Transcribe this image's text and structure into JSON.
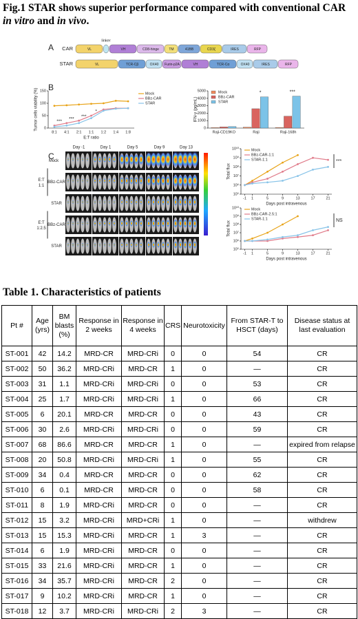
{
  "figure": {
    "title": [
      "Fig.1 STAR shows superior performance compared with conventional CAR ",
      "in vitro",
      " and ",
      "in vivo",
      "."
    ],
    "panel_a": {
      "label": "A",
      "linker": "linker",
      "rows": [
        {
          "name": "CAR",
          "segments": [
            "VL",
            "VH",
            "CD8-hinge",
            "TM",
            "41BB",
            "CD3ζ",
            "IRES",
            "RFP"
          ]
        },
        {
          "name": "STAR",
          "segments": [
            "VL",
            "TCR-Cβ",
            "OX40",
            "Furin-p2A",
            "VH",
            "TCR-Cα",
            "OX40",
            "IRES",
            "RFP"
          ]
        }
      ]
    },
    "panel_b": {
      "label": "B"
    },
    "panel_c": {
      "label": "C",
      "days": [
        "Day -1",
        "Day 1",
        "Day 5",
        "Day 9",
        "Day 13"
      ],
      "rows": [
        "Mock",
        "BBz-CAR",
        "STAR",
        "BBz-CAR",
        "STAR"
      ],
      "groups": [
        [
          "E:T",
          "1:1"
        ],
        [
          "E:T",
          "1:2.5"
        ]
      ]
    }
  },
  "chart_data": [
    {
      "type": "line",
      "y_label": "Tumor cells viability (%)",
      "x_label": "E:T ratio",
      "categories": [
        "8:1",
        "4:1",
        "2:1",
        "1:1",
        "1:2",
        "1:4",
        "1:8"
      ],
      "ylim": [
        0,
        150
      ],
      "yticks": [
        0,
        50,
        100,
        150
      ],
      "legend": "right",
      "series": [
        {
          "name": "Mock",
          "color": "#e8a317",
          "values": [
            90,
            92,
            95,
            98,
            100,
            110,
            108
          ]
        },
        {
          "name": "BBz-CAR",
          "color": "#e07b8a",
          "values": [
            10,
            20,
            30,
            50,
            75,
            80,
            80
          ]
        },
        {
          "name": "STAR",
          "color": "#87c3e8",
          "values": [
            5,
            10,
            20,
            40,
            70,
            78,
            80
          ]
        }
      ],
      "annotations": [
        "***",
        "***",
        "***",
        "*"
      ]
    },
    {
      "type": "bar",
      "y_label": "IFN-γ (pg/mL)",
      "categories": [
        "Raji-CD19KO",
        "Raji",
        "Raji-168h"
      ],
      "ylim": [
        0,
        5000
      ],
      "yticks": [
        0,
        1000,
        2000,
        3000,
        4000,
        5000
      ],
      "legend": "upper left",
      "series": [
        {
          "name": "Mock",
          "color": "#f08a5d",
          "values": [
            60,
            120,
            80
          ]
        },
        {
          "name": "BBz-CAR",
          "color": "#d9645f",
          "values": [
            150,
            2600,
            1600
          ]
        },
        {
          "name": "STAR",
          "color": "#7cc3e8",
          "values": [
            200,
            4200,
            4300
          ]
        }
      ],
      "annotations": [
        "*",
        "***"
      ]
    },
    {
      "type": "line",
      "y_label": "Total flux",
      "x_label": "Days post intravenous",
      "log_y": true,
      "x": [
        -1,
        1,
        5,
        9,
        13,
        17,
        21
      ],
      "xlim": [
        -2,
        22
      ],
      "xticks": [
        -1,
        1,
        5,
        9,
        13,
        17,
        21
      ],
      "ylim": [
        100000,
        10000000000
      ],
      "yticks": [
        {
          "value": 100000,
          "label": "10⁵"
        },
        {
          "value": 1000000,
          "label": "10⁶"
        },
        {
          "value": 10000000,
          "label": "10⁷"
        },
        {
          "value": 100000000,
          "label": "10⁸"
        },
        {
          "value": 1000000000,
          "label": "10⁹"
        },
        {
          "value": 10000000000,
          "label": "10¹⁰"
        }
      ],
      "legend": "upper left",
      "series": [
        {
          "name": "Mock",
          "color": "#e8a317",
          "values": [
            1000000,
            3000000,
            30000000,
            300000000,
            2000000000,
            null,
            null
          ]
        },
        {
          "name": "BBz-CAR-1:1",
          "color": "#e07b8a",
          "values": [
            1000000,
            2000000,
            5000000,
            30000000,
            200000000,
            1000000000,
            600000000
          ]
        },
        {
          "name": "STAR-1:1",
          "color": "#87c3e8",
          "values": [
            1000000,
            1500000,
            2000000,
            3000000,
            10000000,
            50000000,
            100000000
          ]
        }
      ],
      "annotations": [
        "***"
      ]
    },
    {
      "type": "line",
      "y_label": "Total flux",
      "x_label": "Days post intravenous",
      "log_y": true,
      "x": [
        -1,
        1,
        5,
        9,
        13,
        17,
        21
      ],
      "xlim": [
        -2,
        22
      ],
      "xticks": [
        -1,
        1,
        5,
        9,
        13,
        17,
        21
      ],
      "ylim": [
        100000,
        10000000000
      ],
      "yticks": [
        {
          "value": 100000,
          "label": "10⁵"
        },
        {
          "value": 1000000,
          "label": "10⁶"
        },
        {
          "value": 10000000,
          "label": "10⁷"
        },
        {
          "value": 100000000,
          "label": "10⁸"
        },
        {
          "value": 1000000000,
          "label": "10⁹"
        },
        {
          "value": 10000000000,
          "label": "10¹⁰"
        }
      ],
      "legend": "upper left",
      "series": [
        {
          "name": "Mock",
          "color": "#e8a317",
          "values": [
            1000000,
            2000000,
            10000000,
            100000000,
            1000000000,
            null,
            null
          ]
        },
        {
          "name": "BBz-CAR-2.5:1",
          "color": "#e07b8a",
          "values": [
            1000000,
            1000000,
            1000000,
            2000000,
            3000000,
            5000000,
            20000000
          ]
        },
        {
          "name": "STAR-1:1",
          "color": "#87c3e8",
          "values": [
            1000000,
            1000000,
            1500000,
            3000000,
            5000000,
            20000000,
            50000000
          ]
        }
      ],
      "annotations": [
        "NS"
      ]
    }
  ],
  "table": {
    "title": "Table 1. Characteristics of patients",
    "headers": [
      "Pt #",
      "Age (yrs)",
      "BM blasts (%)",
      "Response in 2 weeks",
      "Response in 4 weeks",
      "CRS",
      "Neurotoxicity",
      "From STAR-T to HSCT (days)",
      "Disease status at last evaluation"
    ],
    "rows": [
      [
        "ST-001",
        "42",
        "14.2",
        "MRD-CR",
        "MRD-CRi",
        "0",
        "0",
        "54",
        "CR"
      ],
      [
        "ST-002",
        "50",
        "36.2",
        "MRD-CRi",
        "MRD-CR",
        "1",
        "0",
        "—",
        "CR"
      ],
      [
        "ST-003",
        "31",
        "1.1",
        "MRD-CRi",
        "MRD-CRi",
        "0",
        "0",
        "53",
        "CR"
      ],
      [
        "ST-004",
        "25",
        "1.7",
        "MRD-CRi",
        "MRD-CRi",
        "1",
        "0",
        "66",
        "CR"
      ],
      [
        "ST-005",
        "6",
        "20.1",
        "MRD-CR",
        "MRD-CR",
        "0",
        "0",
        "43",
        "CR"
      ],
      [
        "ST-006",
        "30",
        "2.6",
        "MRD-CRi",
        "MRD-CRi",
        "0",
        "0",
        "59",
        "CR"
      ],
      [
        "ST-007",
        "68",
        "86.6",
        "MRD-CR",
        "MRD-CR",
        "1",
        "0",
        "—",
        "expired from relapse"
      ],
      [
        "ST-008",
        "20",
        "50.8",
        "MRD-CRi",
        "MRD-CRi",
        "1",
        "0",
        "55",
        "CR"
      ],
      [
        "ST-009",
        "34",
        "0.4",
        "MRD-CR",
        "MRD-CR",
        "0",
        "0",
        "62",
        "CR"
      ],
      [
        "ST-010",
        "6",
        "0.1",
        "MRD-CR",
        "MRD-CR",
        "0",
        "0",
        "58",
        "CR"
      ],
      [
        "ST-011",
        "8",
        "1.9",
        "MRD-CRi",
        "MRD-CR",
        "0",
        "0",
        "—",
        "CR"
      ],
      [
        "ST-012",
        "15",
        "3.2",
        "MRD-CRi",
        "MRD+CRi",
        "1",
        "0",
        "—",
        "withdrew"
      ],
      [
        "ST-013",
        "15",
        "15.3",
        "MRD-CRi",
        "MRD-CR",
        "1",
        "3",
        "—",
        "CR"
      ],
      [
        "ST-014",
        "6",
        "1.9",
        "MRD-CRi",
        "MRD-CR",
        "0",
        "0",
        "—",
        "CR"
      ],
      [
        "ST-015",
        "33",
        "21.6",
        "MRD-CRi",
        "MRD-CR",
        "1",
        "0",
        "—",
        "CR"
      ],
      [
        "ST-016",
        "34",
        "35.7",
        "MRD-CRi",
        "MRD-CR",
        "2",
        "0",
        "—",
        "CR"
      ],
      [
        "ST-017",
        "9",
        "10.2",
        "MRD-CRi",
        "MRD-CR",
        "1",
        "0",
        "—",
        "CR"
      ],
      [
        "ST-018",
        "12",
        "3.7",
        "MRD-CRi",
        "MRD-CRi",
        "2",
        "3",
        "—",
        "CR"
      ]
    ]
  }
}
